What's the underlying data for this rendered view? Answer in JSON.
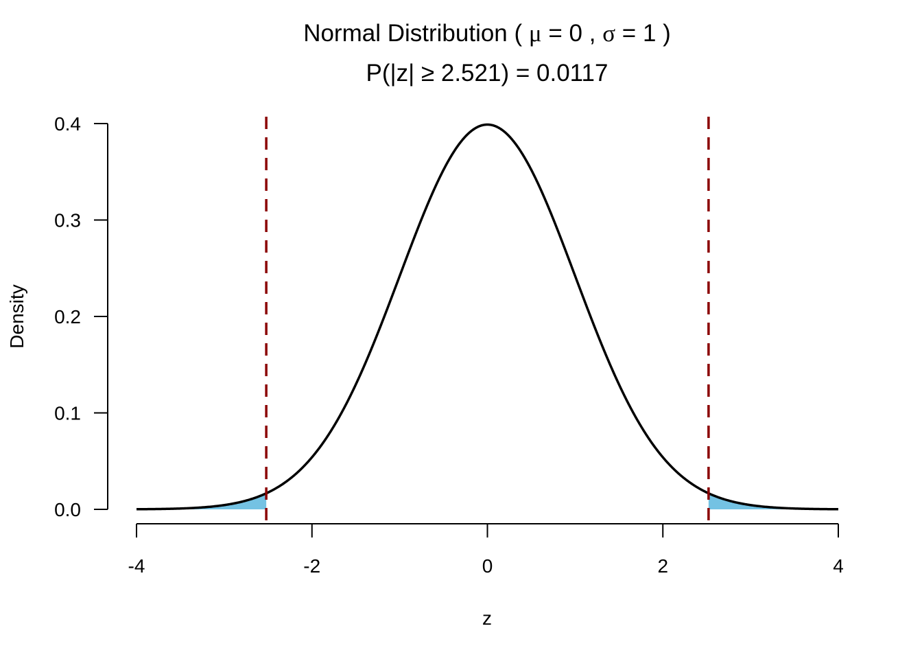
{
  "chart_data": {
    "type": "area",
    "title": {
      "prefix": "Normal Distribution ( ",
      "mu_symbol": "μ",
      "mu_part": " = 0 , ",
      "sigma_symbol": "σ",
      "sigma_part": " = 1 )",
      "full": "Normal Distribution ( μ = 0 , σ = 1 )"
    },
    "subtitle": "P(|z| ≥ 2.521) = 0.0117",
    "xlabel": "z",
    "ylabel": "Density",
    "xlim": [
      -4,
      4
    ],
    "ylim": [
      0,
      0.4
    ],
    "xticks": [
      -4,
      -2,
      0,
      2,
      4
    ],
    "xtick_labels": [
      "-4",
      "-2",
      "0",
      "2",
      "4"
    ],
    "yticks": [
      0,
      0.1,
      0.2,
      0.3,
      0.4
    ],
    "ytick_labels": [
      "0.0",
      "0.1",
      "0.2",
      "0.3",
      "0.4"
    ],
    "distribution": {
      "name": "normal",
      "mean": 0,
      "sd": 1
    },
    "critical_values": [
      -2.521,
      2.521
    ],
    "tail_probability": 0.0117,
    "grid": false,
    "colors": {
      "curve": "#000000",
      "shade": "#74C2E3",
      "critical_line": "#8B0000"
    }
  }
}
